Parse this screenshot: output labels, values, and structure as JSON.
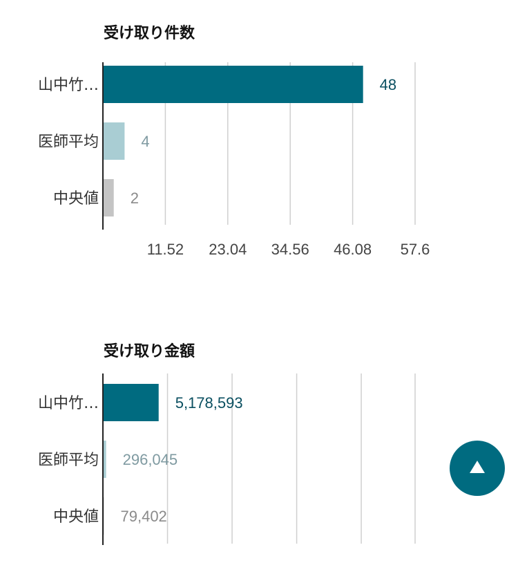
{
  "colors": {
    "primary": "#006b80",
    "average": "#a9cdd3",
    "median": "#c4c4c4",
    "primary_label": "#0a4f60",
    "average_label": "#7f9aa1",
    "median_label": "#8a8a8a",
    "grid": "#cfcfcf",
    "axis": "#222222",
    "tick_text": "#444444",
    "category_text": "#333333"
  },
  "scroll_top": {
    "icon": "triangle-up-icon",
    "color": "#006b80"
  },
  "chart_data": [
    {
      "type": "bar",
      "orientation": "horizontal",
      "title": "受け取り件数",
      "categories": [
        "山中竹…",
        "医師平均",
        "中央値"
      ],
      "values": [
        48,
        4,
        2
      ],
      "value_labels": [
        "48",
        "4",
        "2"
      ],
      "xlim": [
        0,
        57.6
      ],
      "xticks": [
        11.52,
        23.04,
        34.56,
        46.08,
        57.6
      ],
      "xtick_labels": [
        "11.52",
        "23.04",
        "34.56",
        "46.08",
        "57.6"
      ],
      "grid": true
    },
    {
      "type": "bar",
      "orientation": "horizontal",
      "title": "受け取り金額",
      "categories": [
        "山中竹…",
        "医師平均",
        "中央値"
      ],
      "values": [
        5178593,
        296045,
        79402
      ],
      "value_labels": [
        "5,178,593",
        "296,045",
        "79,402"
      ],
      "xlim": [
        0,
        29000000
      ],
      "xticks": [
        6000000,
        12000000,
        18000000,
        24000000,
        29000000
      ],
      "xtick_labels": [],
      "grid": true
    }
  ]
}
